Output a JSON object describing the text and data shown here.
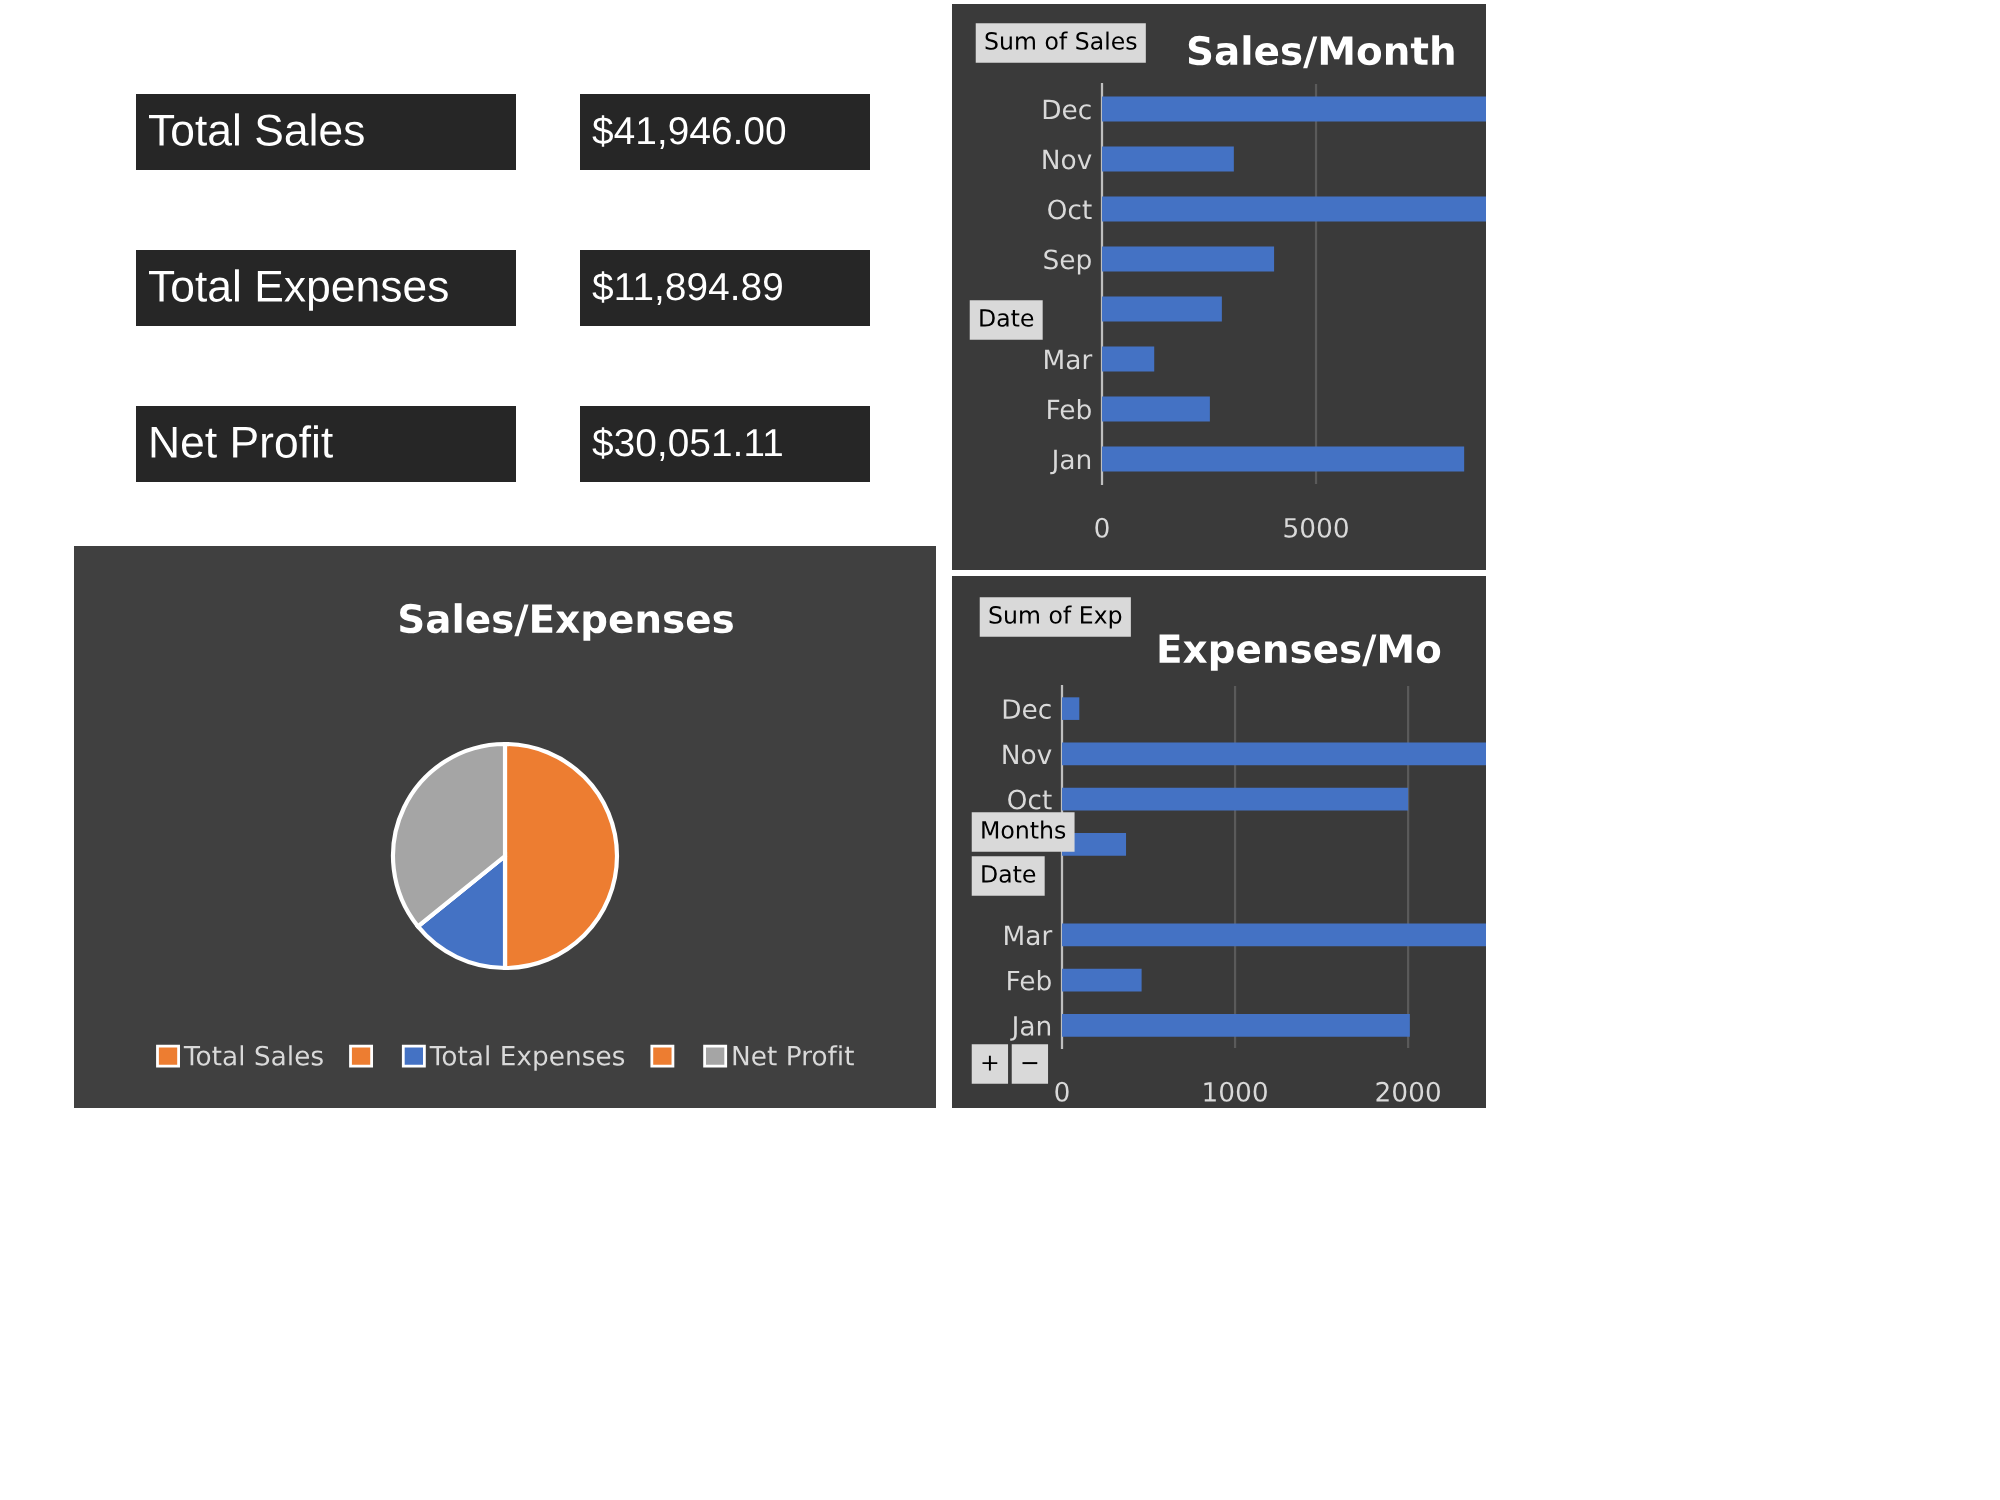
{
  "chart_data": [
    {
      "type": "other",
      "annotations": [
        "Total Sales",
        "$41,946.00",
        "Total Expenses",
        "$11,894.89",
        "Net Profit",
        "$30,051.11"
      ]
    },
    {
      "type": "pie",
      "title": "Sales/Expenses",
      "categories": [
        "Total Sales",
        null,
        "Total Expenses",
        null,
        "Net Profit"
      ],
      "values": [
        50,
        0,
        14.18,
        0,
        35.82
      ],
      "colors": [
        "#ed7d31",
        "#ed7d31",
        "#4472c4",
        "#ed7d31",
        "#a5a5a5"
      ],
      "legend": "bottom"
    },
    {
      "type": "bar",
      "orientation": "horizontal",
      "title": "Sales/Month",
      "categories": [
        "Dec",
        "Nov",
        "Oct",
        "Sep",
        null,
        "Mar",
        "Feb",
        "Jan"
      ],
      "values": [
        8970,
        3080,
        8970,
        4020,
        2800,
        1220,
        2520,
        8460
      ],
      "color": "#4472c4",
      "xlim": [
        0,
        8970
      ],
      "xticks": [
        0,
        5000
      ],
      "grid": "x",
      "annotations": [
        "Sum of Sales",
        "Date"
      ]
    },
    {
      "type": "bar",
      "orientation": "horizontal",
      "title": "Expenses/Mo",
      "categories": [
        "Dec",
        "Nov",
        "Oct",
        null,
        null,
        "Mar",
        "Feb",
        "Jan"
      ],
      "values": [
        100,
        2450,
        2000,
        370,
        null,
        2450,
        460,
        2010
      ],
      "color": "#4472c4",
      "xlim": [
        0,
        2450
      ],
      "xticks": [
        0,
        1000,
        2000
      ],
      "grid": "x",
      "annotations": [
        "Sum of Exp",
        "Months",
        "Date",
        "+",
        "−"
      ]
    }
  ]
}
